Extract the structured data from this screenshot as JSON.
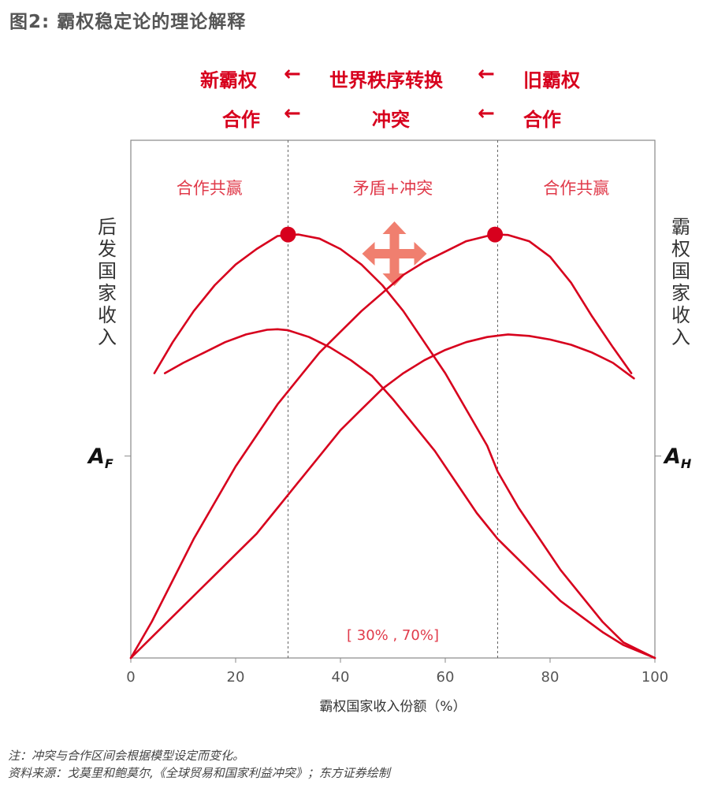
{
  "figure_title": "图2: 霸权稳定论的理论解释",
  "header": {
    "row1": {
      "left": "新霸权",
      "center": "世界秩序转换",
      "right": "旧霸权"
    },
    "row2": {
      "left": "合作",
      "center": "冲突",
      "right": "合作"
    },
    "arrow": "←"
  },
  "left_axis_label": "后发国家收入",
  "right_axis_label": "霸权国家收入",
  "colors": {
    "accent": "#d7001d",
    "zone_text": "#e03a4a",
    "icon": "#f07f6f",
    "axis": "#888888"
  },
  "chart_data": {
    "type": "line",
    "xlabel": "霸权国家收入份额（%）",
    "ylabel": "",
    "xlim": [
      0,
      100
    ],
    "ylim": [
      0,
      100
    ],
    "x_ticks": [
      0,
      20,
      40,
      60,
      80,
      100
    ],
    "grid": false,
    "y_tick_labels": {
      "left": {
        "main": "A",
        "sub": "F",
        "value": 39
      },
      "right": {
        "main": "A",
        "sub": "H",
        "value": 39
      }
    },
    "vlines": [
      30,
      70
    ],
    "zones": [
      {
        "label": "合作共赢",
        "x": 15
      },
      {
        "label": "矛盾+冲突",
        "x": 50
      },
      {
        "label": "合作共赢",
        "x": 85
      }
    ],
    "interval_label": "[ 30% , 70%]",
    "icon": "four-way-arrow-icon",
    "series": [
      {
        "x": [
          4.5,
          8,
          12,
          16,
          20,
          24,
          28,
          32,
          36,
          40,
          44,
          48,
          52,
          56,
          60,
          64,
          68,
          70,
          74,
          78,
          82,
          86,
          90,
          94,
          100
        ],
        "y": [
          55,
          61,
          67,
          72,
          76,
          79,
          81.5,
          81.8,
          81,
          79,
          76,
          72,
          67,
          61,
          55,
          48,
          41,
          36,
          29,
          23,
          17,
          12,
          7,
          3,
          0
        ]
      },
      {
        "x": [
          6.5,
          10,
          14,
          18,
          22,
          26,
          28,
          30,
          34,
          38,
          42,
          46,
          50,
          54,
          58,
          62,
          66,
          70,
          74,
          78,
          82,
          86,
          90,
          94,
          100
        ],
        "y": [
          55,
          57,
          59,
          61,
          62.5,
          63.4,
          63.5,
          63.3,
          62,
          60,
          57.5,
          54.5,
          50,
          45,
          40,
          34,
          28,
          23,
          19,
          15,
          11,
          8,
          5,
          2.5,
          0
        ]
      },
      {
        "x": [
          0,
          4,
          8,
          12,
          16,
          20,
          24,
          28,
          32,
          36,
          40,
          44,
          48,
          52,
          56,
          60,
          64,
          68,
          70,
          72,
          76,
          80,
          84,
          88,
          92,
          95.5
        ],
        "y": [
          0,
          7,
          15,
          23,
          30,
          37,
          43,
          49,
          54,
          59,
          63,
          67,
          70.5,
          74,
          76.5,
          78.5,
          80.5,
          81.5,
          81.8,
          81.7,
          80.5,
          77.5,
          72.5,
          66,
          60,
          55
        ]
      },
      {
        "x": [
          0,
          4,
          8,
          12,
          16,
          20,
          24,
          28,
          32,
          36,
          40,
          44,
          48,
          52,
          56,
          60,
          64,
          68,
          72,
          76,
          80,
          84,
          88,
          92,
          96
        ],
        "y": [
          0,
          4,
          8,
          12,
          16,
          20,
          24,
          29,
          34,
          39,
          44,
          48,
          52,
          55,
          57.5,
          59.5,
          61,
          62,
          62.5,
          62.2,
          61.5,
          60.5,
          59,
          57,
          54
        ]
      }
    ],
    "points": [
      {
        "x": 30,
        "y": 81.8
      },
      {
        "x": 69.5,
        "y": 81.8
      }
    ]
  },
  "notes": [
    "注：冲突与合作区间会根据模型设定而变化。",
    "资料来源：戈莫里和鲍莫尔,《全球贸易和国家利益冲突》；东方证券绘制"
  ]
}
